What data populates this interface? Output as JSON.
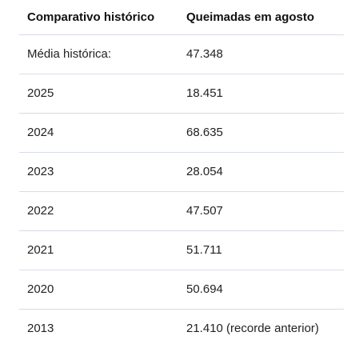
{
  "table": {
    "headers": [
      "Comparativo histórico",
      "Queimadas em agosto"
    ],
    "rows": [
      [
        "Média histórica:",
        "47.348"
      ],
      [
        "2025",
        "18.451"
      ],
      [
        "2024",
        "68.635"
      ],
      [
        "2023",
        "28.054"
      ],
      [
        "2022",
        "47.507"
      ],
      [
        "2021",
        "51.711"
      ],
      [
        "2020",
        "50.694"
      ],
      [
        "2013",
        "21.410 (recorde anterior)"
      ]
    ]
  }
}
